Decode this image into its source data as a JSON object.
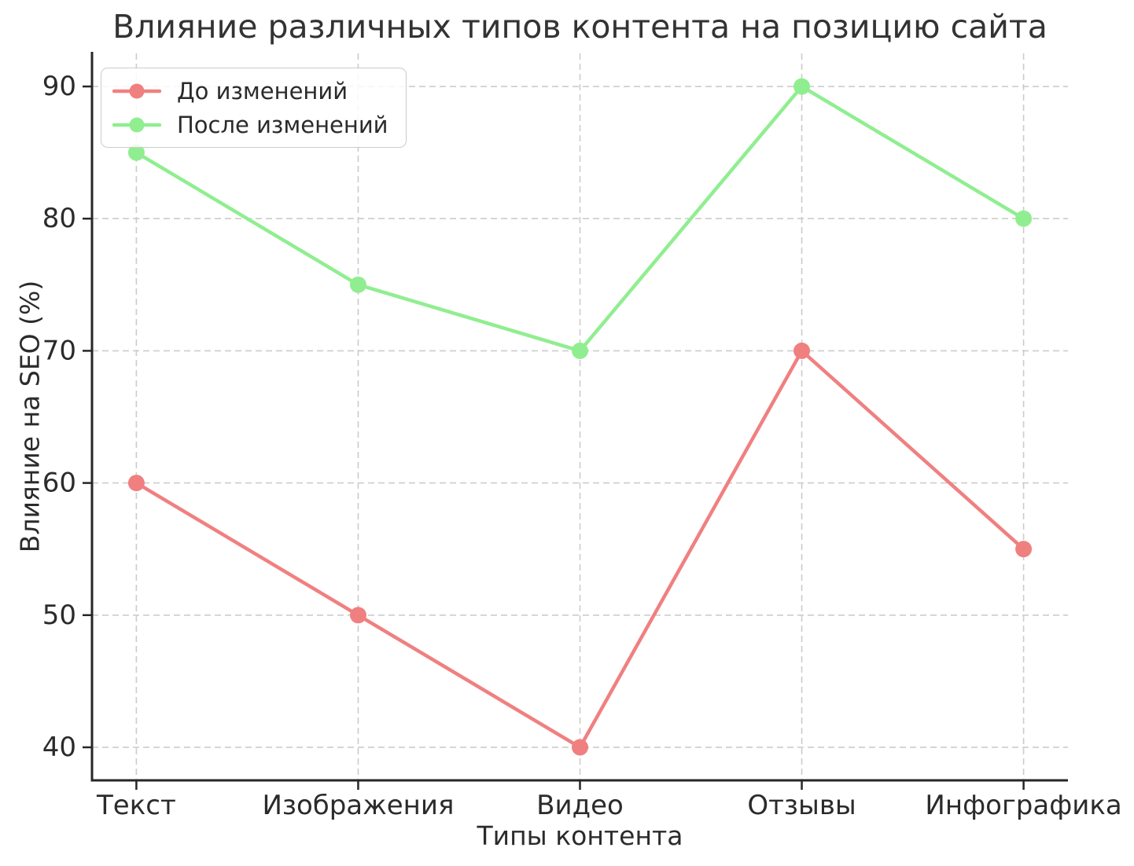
{
  "chart_data": {
    "type": "line",
    "title": "Влияние различных типов контента на позицию сайта",
    "xlabel": "Типы контента",
    "ylabel": "Влияние на SEO (%)",
    "categories": [
      "Текст",
      "Изображения",
      "Видео",
      "Отзывы",
      "Инфографика"
    ],
    "series": [
      {
        "name": "До изменений",
        "color": "#f08080",
        "values": [
          60,
          50,
          40,
          70,
          55
        ]
      },
      {
        "name": "После изменений",
        "color": "#90ee90",
        "values": [
          85,
          75,
          70,
          90,
          80
        ]
      }
    ],
    "yticks": [
      40,
      50,
      60,
      70,
      80,
      90
    ],
    "ylim": [
      37.5,
      92.5
    ],
    "grid": true,
    "grid_style": "dashed",
    "legend_position": "upper-left",
    "colors": {
      "grid": "#cccccc",
      "axis": "#262626",
      "text": "#2b2b2b",
      "background": "#ffffff"
    }
  }
}
